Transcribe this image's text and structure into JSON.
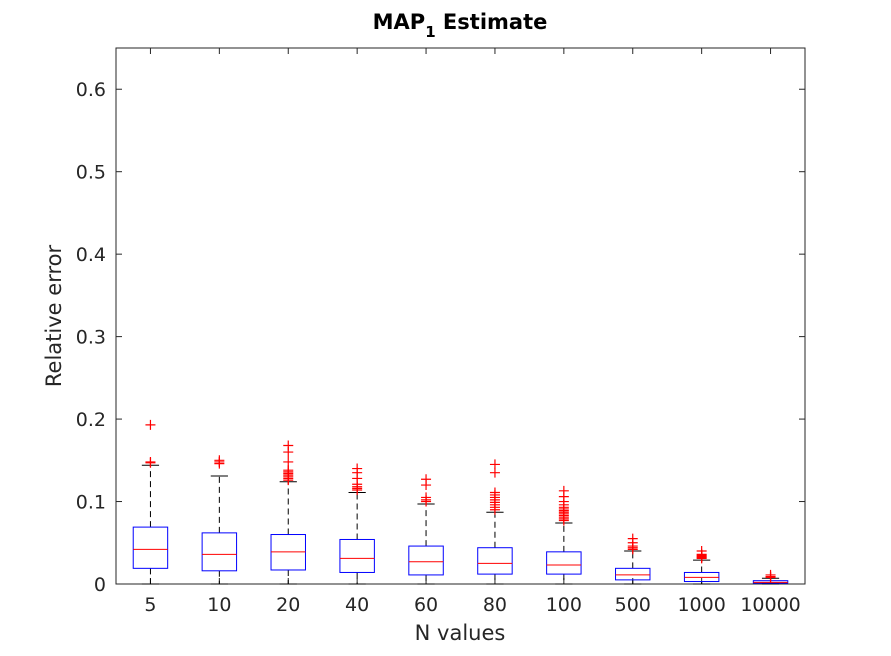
{
  "chart_data": {
    "type": "boxplot",
    "title": "MAP",
    "title_subscript": "1",
    "title_suffix": " Estimate",
    "xlabel": "N values",
    "ylabel": "Relative error",
    "ylim": [
      0,
      0.65
    ],
    "yticks": [
      0,
      0.1,
      0.2,
      0.3,
      0.4,
      0.5,
      0.6
    ],
    "ytick_labels": [
      "0",
      "0.1",
      "0.2",
      "0.3",
      "0.4",
      "0.5",
      "0.6"
    ],
    "categories": [
      "5",
      "10",
      "20",
      "40",
      "60",
      "80",
      "100",
      "500",
      "1000",
      "10000"
    ],
    "grid": false,
    "colors": {
      "box": "#0000ff",
      "median": "#ff0000",
      "whisker": "#000000",
      "outlier": "#ff0000"
    },
    "boxes": [
      {
        "q1": 0.019,
        "median": 0.042,
        "q3": 0.069,
        "whisker_low": 0.0,
        "whisker_high": 0.144,
        "outliers": [
          0.147,
          0.148,
          0.193
        ]
      },
      {
        "q1": 0.016,
        "median": 0.036,
        "q3": 0.062,
        "whisker_low": 0.0,
        "whisker_high": 0.131,
        "outliers": [
          0.146,
          0.148,
          0.15
        ]
      },
      {
        "q1": 0.017,
        "median": 0.039,
        "q3": 0.06,
        "whisker_low": 0.0,
        "whisker_high": 0.124,
        "outliers": [
          0.126,
          0.128,
          0.13,
          0.132,
          0.134,
          0.136,
          0.138,
          0.148,
          0.16,
          0.168
        ]
      },
      {
        "q1": 0.014,
        "median": 0.031,
        "q3": 0.054,
        "whisker_low": 0.0,
        "whisker_high": 0.111,
        "outliers": [
          0.114,
          0.116,
          0.118,
          0.121,
          0.128,
          0.135,
          0.14
        ]
      },
      {
        "q1": 0.011,
        "median": 0.027,
        "q3": 0.046,
        "whisker_low": 0.0,
        "whisker_high": 0.097,
        "outliers": [
          0.1,
          0.102,
          0.105,
          0.12,
          0.127
        ]
      },
      {
        "q1": 0.012,
        "median": 0.025,
        "q3": 0.044,
        "whisker_low": 0.0,
        "whisker_high": 0.087,
        "outliers": [
          0.09,
          0.093,
          0.096,
          0.099,
          0.102,
          0.105,
          0.108,
          0.111,
          0.135,
          0.145
        ]
      },
      {
        "q1": 0.012,
        "median": 0.023,
        "q3": 0.039,
        "whisker_low": 0.0,
        "whisker_high": 0.074,
        "outliers": [
          0.077,
          0.079,
          0.081,
          0.083,
          0.085,
          0.087,
          0.089,
          0.091,
          0.093,
          0.096,
          0.1,
          0.106,
          0.113
        ]
      },
      {
        "q1": 0.005,
        "median": 0.011,
        "q3": 0.019,
        "whisker_low": 0.0,
        "whisker_high": 0.04,
        "outliers": [
          0.042,
          0.044,
          0.046,
          0.05,
          0.055
        ]
      },
      {
        "q1": 0.003,
        "median": 0.008,
        "q3": 0.014,
        "whisker_low": 0.0,
        "whisker_high": 0.029,
        "outliers": [
          0.031,
          0.032,
          0.033,
          0.034,
          0.035,
          0.036,
          0.04
        ]
      },
      {
        "q1": 0.001,
        "median": 0.002,
        "q3": 0.004,
        "whisker_low": 0.0,
        "whisker_high": 0.007,
        "outliers": [
          0.008,
          0.009,
          0.011
        ]
      }
    ]
  }
}
